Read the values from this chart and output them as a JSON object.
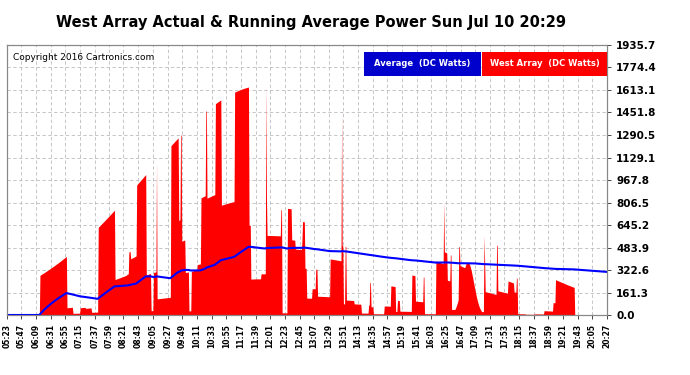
{
  "title": "West Array Actual & Running Average Power Sun Jul 10 20:29",
  "copyright": "Copyright 2016 Cartronics.com",
  "ylabel_values": [
    0.0,
    161.3,
    322.6,
    483.9,
    645.2,
    806.5,
    967.8,
    1129.1,
    1290.5,
    1451.8,
    1613.1,
    1774.4,
    1935.7
  ],
  "ymax": 1935.7,
  "bg_color": "#ffffff",
  "grid_color": "#bbbbbb",
  "fill_color": "#ff0000",
  "avg_line_color": "#0000ff",
  "legend_avg_bg": "#0000cc",
  "legend_west_bg": "#ff0000",
  "legend_avg_text": "Average  (DC Watts)",
  "legend_west_text": "West Array  (DC Watts)",
  "x_labels": [
    "05:23",
    "05:47",
    "06:09",
    "06:31",
    "06:55",
    "07:15",
    "07:37",
    "07:59",
    "08:21",
    "08:43",
    "09:05",
    "09:27",
    "09:49",
    "10:11",
    "10:33",
    "10:55",
    "11:17",
    "11:39",
    "12:01",
    "12:23",
    "12:45",
    "13:07",
    "13:29",
    "13:51",
    "14:13",
    "14:35",
    "14:57",
    "15:19",
    "15:41",
    "16:03",
    "16:25",
    "16:47",
    "17:09",
    "17:31",
    "17:53",
    "18:15",
    "18:37",
    "18:59",
    "19:21",
    "19:43",
    "20:05",
    "20:27"
  ]
}
